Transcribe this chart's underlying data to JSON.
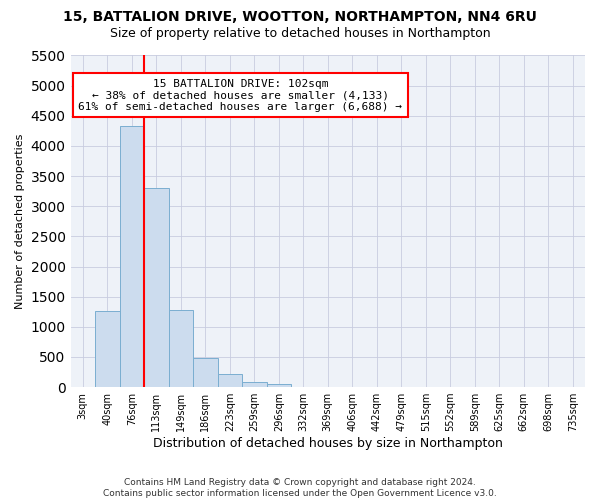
{
  "title1": "15, BATTALION DRIVE, WOOTTON, NORTHAMPTON, NN4 6RU",
  "title2": "Size of property relative to detached houses in Northampton",
  "xlabel": "Distribution of detached houses by size in Northampton",
  "ylabel": "Number of detached properties",
  "categories": [
    "3sqm",
    "40sqm",
    "76sqm",
    "113sqm",
    "149sqm",
    "186sqm",
    "223sqm",
    "259sqm",
    "296sqm",
    "332sqm",
    "369sqm",
    "406sqm",
    "442sqm",
    "479sqm",
    "515sqm",
    "552sqm",
    "589sqm",
    "625sqm",
    "662sqm",
    "698sqm",
    "735sqm"
  ],
  "values": [
    0,
    1270,
    4330,
    3300,
    1280,
    490,
    215,
    90,
    55,
    0,
    0,
    0,
    0,
    0,
    0,
    0,
    0,
    0,
    0,
    0,
    0
  ],
  "bar_color": "#ccdcee",
  "bar_edge_color": "#7aaed0",
  "red_line_index": 2.5,
  "annotation_line1": "15 BATTALION DRIVE: 102sqm",
  "annotation_line2": "← 38% of detached houses are smaller (4,133)",
  "annotation_line3": "61% of semi-detached houses are larger (6,688) →",
  "ylim_max": 5500,
  "yticks": [
    0,
    500,
    1000,
    1500,
    2000,
    2500,
    3000,
    3500,
    4000,
    4500,
    5000,
    5500
  ],
  "footer1": "Contains HM Land Registry data © Crown copyright and database right 2024.",
  "footer2": "Contains public sector information licensed under the Open Government Licence v3.0.",
  "fig_bg": "#ffffff",
  "plot_bg": "#eef2f8",
  "grid_color": "#c8cce0",
  "title1_fontsize": 10,
  "title2_fontsize": 9,
  "ylabel_fontsize": 8,
  "xlabel_fontsize": 9,
  "tick_fontsize": 7,
  "footer_fontsize": 6.5
}
